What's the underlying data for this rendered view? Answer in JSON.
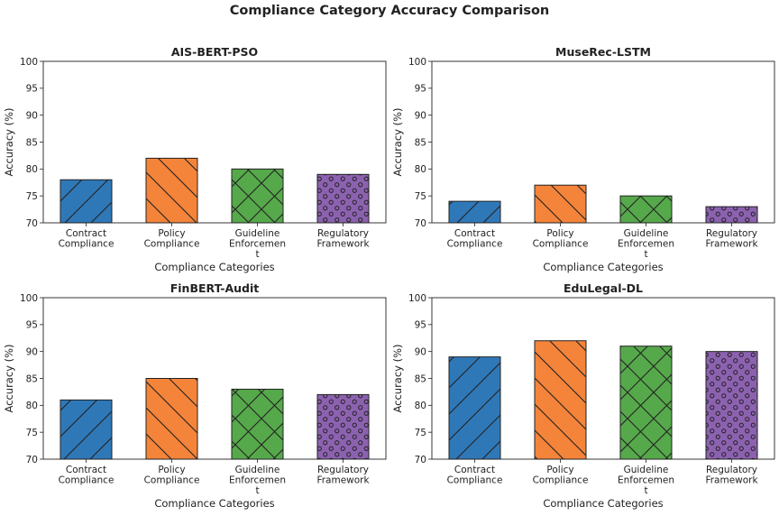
{
  "figure": {
    "title": "Compliance Category Accuracy Comparison"
  },
  "colors": [
    "#2f78b8",
    "#f4843a",
    "#56a94b",
    "#8c62b0"
  ],
  "hatches": [
    "diag-up",
    "diag-down",
    "cross",
    "circles"
  ],
  "chart_data": [
    {
      "type": "bar",
      "title": "AIS-BERT-PSO",
      "xlabel": "Compliance Categories",
      "ylabel": "Accuracy (%)",
      "ylim": [
        70,
        100
      ],
      "yticks": [
        70,
        75,
        80,
        85,
        90,
        95,
        100
      ],
      "categories": [
        [
          "Contract",
          "Compliance"
        ],
        [
          "Policy",
          "Compliance"
        ],
        [
          "Guideline",
          "Enforcemen",
          "t"
        ],
        [
          "Regulatory",
          "Framework"
        ]
      ],
      "values": [
        78,
        82,
        80,
        79
      ]
    },
    {
      "type": "bar",
      "title": "MuseRec-LSTM",
      "xlabel": "Compliance Categories",
      "ylabel": "Accuracy (%)",
      "ylim": [
        70,
        100
      ],
      "yticks": [
        70,
        75,
        80,
        85,
        90,
        95,
        100
      ],
      "categories": [
        [
          "Contract",
          "Compliance"
        ],
        [
          "Policy",
          "Compliance"
        ],
        [
          "Guideline",
          "Enforcemen",
          "t"
        ],
        [
          "Regulatory",
          "Framework"
        ]
      ],
      "values": [
        74,
        77,
        75,
        73
      ]
    },
    {
      "type": "bar",
      "title": "FinBERT-Audit",
      "xlabel": "Compliance Categories",
      "ylabel": "Accuracy (%)",
      "ylim": [
        70,
        100
      ],
      "yticks": [
        70,
        75,
        80,
        85,
        90,
        95,
        100
      ],
      "categories": [
        [
          "Contract",
          "Compliance"
        ],
        [
          "Policy",
          "Compliance"
        ],
        [
          "Guideline",
          "Enforcemen",
          "t"
        ],
        [
          "Regulatory",
          "Framework"
        ]
      ],
      "values": [
        81,
        85,
        83,
        82
      ]
    },
    {
      "type": "bar",
      "title": "EduLegal-DL",
      "xlabel": "Compliance Categories",
      "ylabel": "Accuracy (%)",
      "ylim": [
        70,
        100
      ],
      "yticks": [
        70,
        75,
        80,
        85,
        90,
        95,
        100
      ],
      "categories": [
        [
          "Contract",
          "Compliance"
        ],
        [
          "Policy",
          "Compliance"
        ],
        [
          "Guideline",
          "Enforcemen",
          "t"
        ],
        [
          "Regulatory",
          "Framework"
        ]
      ],
      "values": [
        89,
        92,
        91,
        90
      ]
    }
  ]
}
